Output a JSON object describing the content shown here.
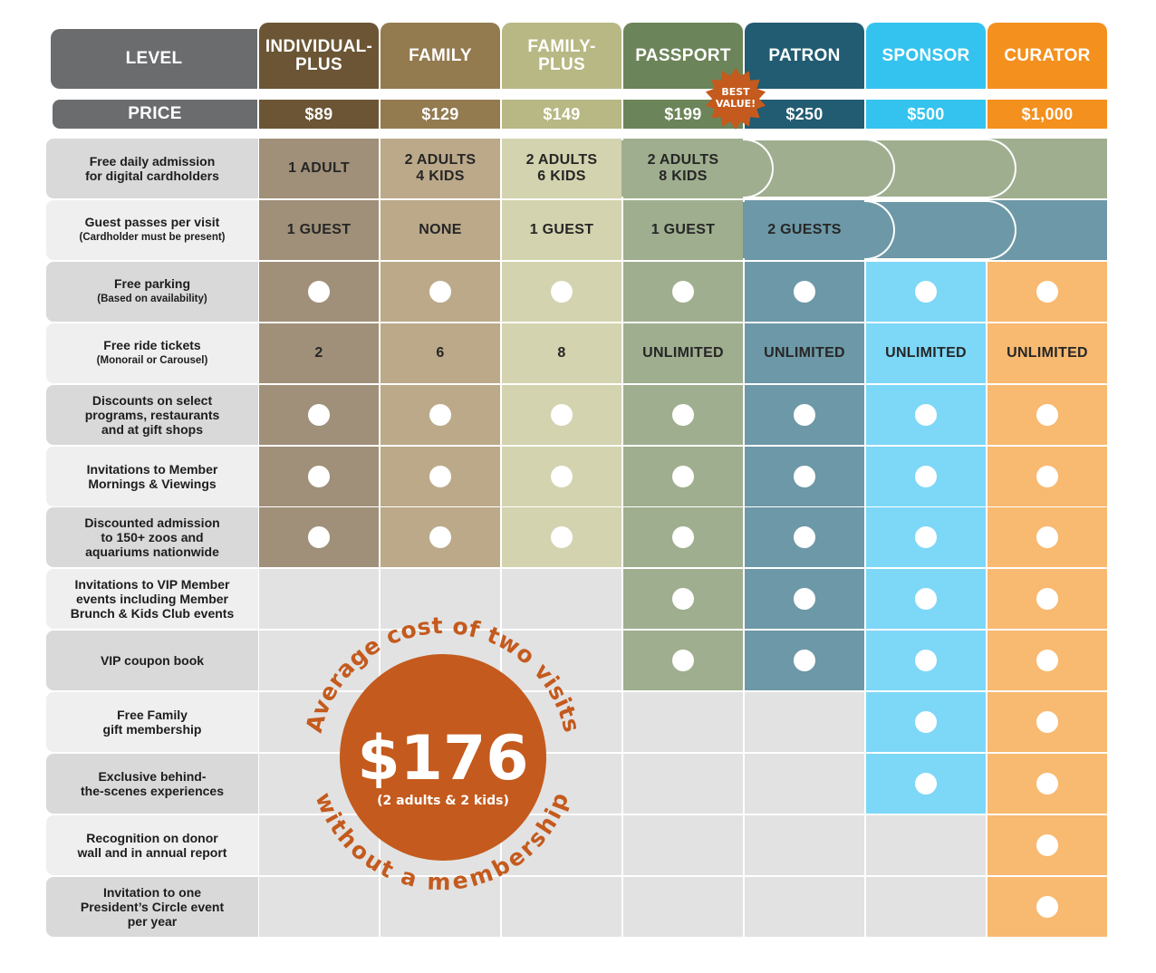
{
  "header": {
    "level_label": "LEVEL",
    "price_label": "PRICE",
    "best_value": [
      "BEST",
      "VALUE!"
    ]
  },
  "levels": [
    {
      "name": "INDIVIDUAL-\nPLUS",
      "price": "$89",
      "head_color": "#6b5535",
      "cell_color": "#a09079"
    },
    {
      "name": "FAMILY",
      "price": "$129",
      "head_color": "#937a4f",
      "cell_color": "#bba98a"
    },
    {
      "name": "FAMILY-\nPLUS",
      "price": "$149",
      "head_color": "#b7b883",
      "cell_color": "#d3d3af"
    },
    {
      "name": "PASSPORT",
      "price": "$199",
      "head_color": "#6c8459",
      "cell_color": "#9fae8f"
    },
    {
      "name": "PATRON",
      "price": "$250",
      "head_color": "#215c72",
      "cell_color": "#6d98a7"
    },
    {
      "name": "SPONSOR",
      "price": "$500",
      "head_color": "#34c3ee",
      "cell_color": "#7dd7f7"
    },
    {
      "name": "CURATOR",
      "price": "$1,000",
      "head_color": "#f4901e",
      "cell_color": "#f8b970"
    }
  ],
  "rows": [
    {
      "label": "Free daily admission\nfor digital cardholders",
      "note": ""
    },
    {
      "label": "Guest passes per visit",
      "note": "(Cardholder must be present)"
    },
    {
      "label": "Free parking",
      "note": "(Based on availability)"
    },
    {
      "label": "Free ride tickets",
      "note": "(Monorail or Carousel)"
    },
    {
      "label": "Discounts on select\nprograms, restaurants\nand at gift shops",
      "note": ""
    },
    {
      "label": "Invitations to Member\nMornings & Viewings",
      "note": ""
    },
    {
      "label": "Discounted admission\nto 150+ zoos and\naquariums nationwide",
      "note": ""
    },
    {
      "label": "Invitations to VIP Member\nevents including Member\nBrunch & Kids Club events",
      "note": ""
    },
    {
      "label": "VIP coupon book",
      "note": ""
    },
    {
      "label": "Free Family\ngift membership",
      "note": ""
    },
    {
      "label": "Exclusive behind-\nthe-scenes experiences",
      "note": ""
    },
    {
      "label": "Recognition on donor\nwall and in annual report",
      "note": ""
    },
    {
      "label": "Invitation to one\nPresident’s Circle event\nper year",
      "note": ""
    }
  ],
  "row0_text": [
    "1 ADULT",
    "2 ADULTS\n4 KIDS",
    "2 ADULTS\n6 KIDS",
    "2 ADULTS\n8 KIDS"
  ],
  "row1_text": [
    "1 GUEST",
    "NONE",
    "1 GUEST",
    "1 GUEST",
    "2 GUESTS"
  ],
  "row3_text": [
    "2",
    "6",
    "8",
    "UNLIMITED",
    "UNLIMITED",
    "UNLIMITED",
    "UNLIMITED"
  ],
  "benefit_from_level": [
    null,
    null,
    0,
    null,
    0,
    0,
    0,
    3,
    3,
    5,
    5,
    6,
    6
  ],
  "promo": {
    "top_arc": "Average cost of two visits",
    "amount": "$176",
    "sub": "(2 adults & 2 kids)",
    "bottom_arc": "without a membership",
    "color": "#c45a1d"
  },
  "colors": {
    "empty_cell": "#e2e2e2",
    "label_dark": "#d9d9da",
    "label_light": "#efeff0"
  }
}
